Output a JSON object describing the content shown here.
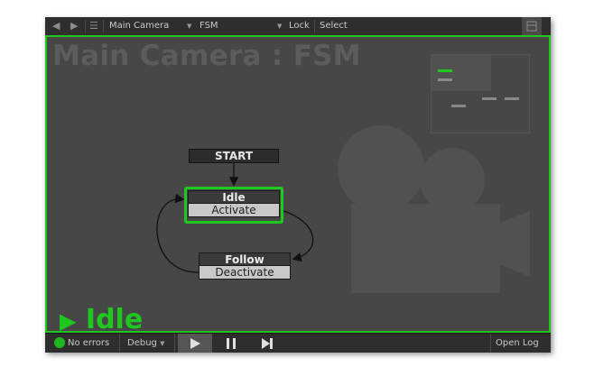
{
  "toolbar": {
    "back_icon": "back-arrow-icon",
    "forward_icon": "forward-arrow-icon",
    "menu_icon": "hamburger-menu-icon",
    "gameobject": "Main Camera",
    "fsm": "FSM",
    "lock_label": "Lock",
    "select_label": "Select",
    "maximize_icon": "maximize-icon"
  },
  "canvas": {
    "title": "Main Camera : FSM",
    "watermark_icon": "movie-camera-icon",
    "active_state": "Idle",
    "accent_color": "#1ec81e"
  },
  "graph": {
    "start_label": "START",
    "states": [
      {
        "name": "Idle",
        "event": "Activate",
        "selected": true
      },
      {
        "name": "Follow",
        "event": "Deactivate",
        "selected": false
      }
    ]
  },
  "statusbar": {
    "errors": "No errors",
    "debug_label": "Debug",
    "play_icon": "play-icon",
    "pause_icon": "pause-icon",
    "step_icon": "step-icon",
    "open_log": "Open Log"
  }
}
